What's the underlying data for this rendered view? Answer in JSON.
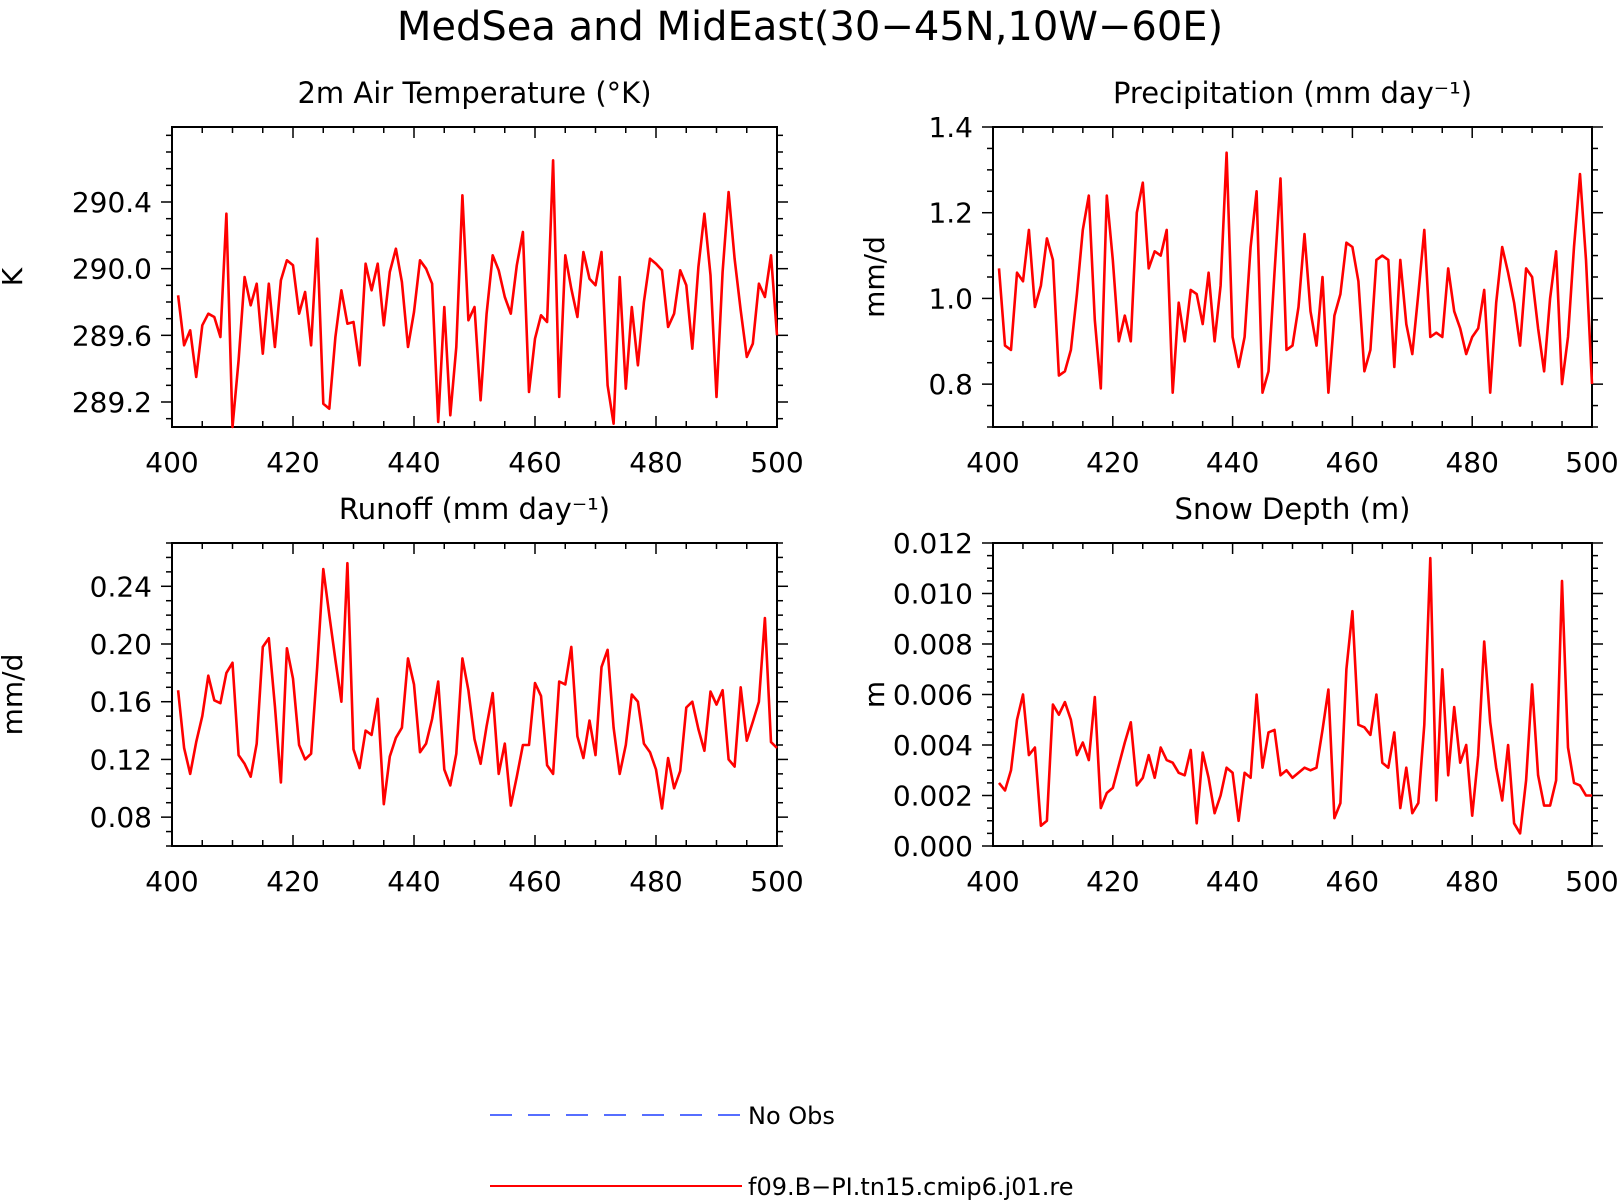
{
  "figure": {
    "title": "MedSea and MidEast(30−45N,10W−60E)"
  },
  "legend": {
    "placement": "bottom-center",
    "entries": [
      {
        "label": "No Obs",
        "color": "#1f3fff",
        "style": "dashed"
      },
      {
        "label": "f09.B−PI.tn15.cmip6.j01.re",
        "color": "#ff0000",
        "style": "solid"
      }
    ]
  },
  "chart_data": [
    {
      "type": "line",
      "title": "2m Air Temperature (°K)",
      "ylabel": "K",
      "xlim": [
        400,
        500
      ],
      "ylim": [
        289.05,
        290.85
      ],
      "xticks": [
        400,
        420,
        440,
        460,
        480,
        500
      ],
      "yticks": [
        289.2,
        289.6,
        290.0,
        290.4
      ],
      "ytick_labels": [
        "289.2",
        "289.6",
        "290.0",
        "290.4"
      ],
      "series": [
        {
          "name": "f09.B−PI.tn15.cmip6.j01.re",
          "color": "#ff0000",
          "x_start": 401,
          "values": [
            289.84,
            289.54,
            289.63,
            289.35,
            289.66,
            289.73,
            289.71,
            289.59,
            290.33,
            289.05,
            289.45,
            289.95,
            289.78,
            289.91,
            289.49,
            289.91,
            289.53,
            289.93,
            290.05,
            290.02,
            289.73,
            289.86,
            289.54,
            290.18,
            289.19,
            289.16,
            289.59,
            289.87,
            289.67,
            289.68,
            289.42,
            290.03,
            289.87,
            290.03,
            289.66,
            289.98,
            290.12,
            289.92,
            289.53,
            289.74,
            290.05,
            290.0,
            289.91,
            289.08,
            289.77,
            289.12,
            289.53,
            290.44,
            289.69,
            289.77,
            289.21,
            289.73,
            290.08,
            289.99,
            289.83,
            289.73,
            290.02,
            290.22,
            289.26,
            289.58,
            289.72,
            289.68,
            290.65,
            289.23,
            290.08,
            289.88,
            289.71,
            290.1,
            289.94,
            289.9,
            290.1,
            289.3,
            289.07,
            289.95,
            289.28,
            289.77,
            289.42,
            289.8,
            290.06,
            290.03,
            289.99,
            289.65,
            289.73,
            289.99,
            289.9,
            289.52,
            290.01,
            290.33,
            289.96,
            289.23,
            289.98,
            290.46,
            290.06,
            289.75,
            289.47,
            289.55,
            289.91,
            289.83,
            290.08,
            289.6
          ]
        }
      ]
    },
    {
      "type": "line",
      "title": "Precipitation (mm day⁻¹)",
      "ylabel": "mm/d",
      "xlim": [
        400,
        500
      ],
      "ylim": [
        0.7,
        1.4
      ],
      "xticks": [
        400,
        420,
        440,
        460,
        480,
        500
      ],
      "yticks": [
        0.8,
        1.0,
        1.2,
        1.4
      ],
      "ytick_labels": [
        "0.8",
        "1.0",
        "1.2",
        "1.4"
      ],
      "series": [
        {
          "name": "f09.B−PI.tn15.cmip6.j01.re",
          "color": "#ff0000",
          "x_start": 401,
          "values": [
            1.07,
            0.89,
            0.88,
            1.06,
            1.04,
            1.16,
            0.98,
            1.03,
            1.14,
            1.09,
            0.82,
            0.83,
            0.88,
            1.01,
            1.16,
            1.24,
            0.95,
            0.79,
            1.24,
            1.09,
            0.9,
            0.96,
            0.9,
            1.2,
            1.27,
            1.07,
            1.11,
            1.1,
            1.16,
            0.78,
            0.99,
            0.9,
            1.02,
            1.01,
            0.94,
            1.06,
            0.9,
            1.03,
            1.34,
            0.91,
            0.84,
            0.91,
            1.12,
            1.25,
            0.78,
            0.83,
            1.06,
            1.28,
            0.88,
            0.89,
            0.98,
            1.15,
            0.97,
            0.89,
            1.05,
            0.78,
            0.96,
            1.01,
            1.13,
            1.12,
            1.04,
            0.83,
            0.88,
            1.09,
            1.1,
            1.09,
            0.84,
            1.09,
            0.94,
            0.87,
            1.01,
            1.16,
            0.91,
            0.92,
            0.91,
            1.07,
            0.97,
            0.93,
            0.87,
            0.91,
            0.93,
            1.02,
            0.78,
            0.99,
            1.12,
            1.06,
            0.99,
            0.89,
            1.07,
            1.05,
            0.93,
            0.83,
            1.0,
            1.11,
            0.8,
            0.91,
            1.12,
            1.29,
            1.09,
            0.8
          ]
        }
      ]
    },
    {
      "type": "line",
      "title": "Runoff (mm day⁻¹)",
      "ylabel": "mm/d",
      "xlim": [
        400,
        500
      ],
      "ylim": [
        0.06,
        0.27
      ],
      "xticks": [
        400,
        420,
        440,
        460,
        480,
        500
      ],
      "yticks": [
        0.08,
        0.12,
        0.16,
        0.2,
        0.24
      ],
      "ytick_labels": [
        "0.08",
        "0.12",
        "0.16",
        "0.20",
        "0.24"
      ],
      "series": [
        {
          "name": "f09.B−PI.tn15.cmip6.j01.re",
          "color": "#ff0000",
          "x_start": 401,
          "values": [
            0.168,
            0.128,
            0.11,
            0.132,
            0.15,
            0.178,
            0.161,
            0.159,
            0.18,
            0.187,
            0.123,
            0.117,
            0.108,
            0.131,
            0.198,
            0.204,
            0.157,
            0.104,
            0.197,
            0.176,
            0.13,
            0.12,
            0.124,
            0.184,
            0.252,
            0.22,
            0.189,
            0.16,
            0.256,
            0.127,
            0.114,
            0.14,
            0.137,
            0.162,
            0.089,
            0.122,
            0.135,
            0.142,
            0.19,
            0.172,
            0.125,
            0.131,
            0.148,
            0.174,
            0.113,
            0.102,
            0.124,
            0.19,
            0.168,
            0.134,
            0.117,
            0.143,
            0.166,
            0.11,
            0.131,
            0.088,
            0.108,
            0.13,
            0.13,
            0.173,
            0.164,
            0.116,
            0.11,
            0.174,
            0.172,
            0.198,
            0.136,
            0.121,
            0.147,
            0.123,
            0.184,
            0.196,
            0.142,
            0.11,
            0.13,
            0.165,
            0.16,
            0.131,
            0.125,
            0.113,
            0.086,
            0.121,
            0.1,
            0.112,
            0.156,
            0.16,
            0.141,
            0.126,
            0.167,
            0.158,
            0.168,
            0.12,
            0.115,
            0.17,
            0.133,
            0.146,
            0.16,
            0.218,
            0.132,
            0.128
          ]
        }
      ]
    },
    {
      "type": "line",
      "title": "Snow Depth (m)",
      "ylabel": "m",
      "xlim": [
        400,
        500
      ],
      "ylim": [
        0.0,
        0.012
      ],
      "xticks": [
        400,
        420,
        440,
        460,
        480,
        500
      ],
      "yticks": [
        0.0,
        0.002,
        0.004,
        0.006,
        0.008,
        0.01,
        0.012
      ],
      "ytick_labels": [
        "0.000",
        "0.002",
        "0.004",
        "0.006",
        "0.008",
        "0.010",
        "0.012"
      ],
      "series": [
        {
          "name": "f09.B−PI.tn15.cmip6.j01.re",
          "color": "#ff0000",
          "x_start": 401,
          "values": [
            0.0025,
            0.0022,
            0.003,
            0.005,
            0.006,
            0.0036,
            0.0039,
            0.0008,
            0.001,
            0.0056,
            0.0052,
            0.0057,
            0.005,
            0.0036,
            0.0041,
            0.0034,
            0.0059,
            0.0015,
            0.0021,
            0.0023,
            0.0032,
            0.0041,
            0.0049,
            0.0024,
            0.0027,
            0.0036,
            0.0027,
            0.0039,
            0.0034,
            0.0033,
            0.0029,
            0.0028,
            0.0038,
            0.0009,
            0.0037,
            0.0027,
            0.0013,
            0.002,
            0.0031,
            0.0029,
            0.001,
            0.0029,
            0.0027,
            0.006,
            0.0031,
            0.0045,
            0.0046,
            0.0028,
            0.003,
            0.0027,
            0.0029,
            0.0031,
            0.003,
            0.0031,
            0.0046,
            0.0062,
            0.0011,
            0.0017,
            0.007,
            0.0093,
            0.0048,
            0.0047,
            0.0044,
            0.006,
            0.0033,
            0.0031,
            0.0045,
            0.0015,
            0.0031,
            0.0013,
            0.0017,
            0.0048,
            0.0114,
            0.0018,
            0.007,
            0.0028,
            0.0055,
            0.0033,
            0.004,
            0.0012,
            0.0036,
            0.0081,
            0.0049,
            0.0031,
            0.0018,
            0.004,
            0.0009,
            0.0005,
            0.0026,
            0.0064,
            0.0028,
            0.0016,
            0.0016,
            0.0026,
            0.0105,
            0.0039,
            0.0025,
            0.0024,
            0.002,
            0.002
          ]
        }
      ]
    }
  ]
}
